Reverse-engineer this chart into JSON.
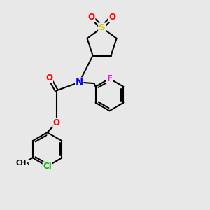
{
  "bg_color": "#e8e8e8",
  "bond_color": "#000000",
  "bond_width": 1.5,
  "atom_colors": {
    "O": "#ff0000",
    "N": "#0000ff",
    "S": "#cccc00",
    "F": "#ff00ff",
    "Cl": "#00bb00",
    "C": "#000000"
  },
  "font_size": 8.5,
  "figsize": [
    3.0,
    3.0
  ],
  "dpi": 100
}
